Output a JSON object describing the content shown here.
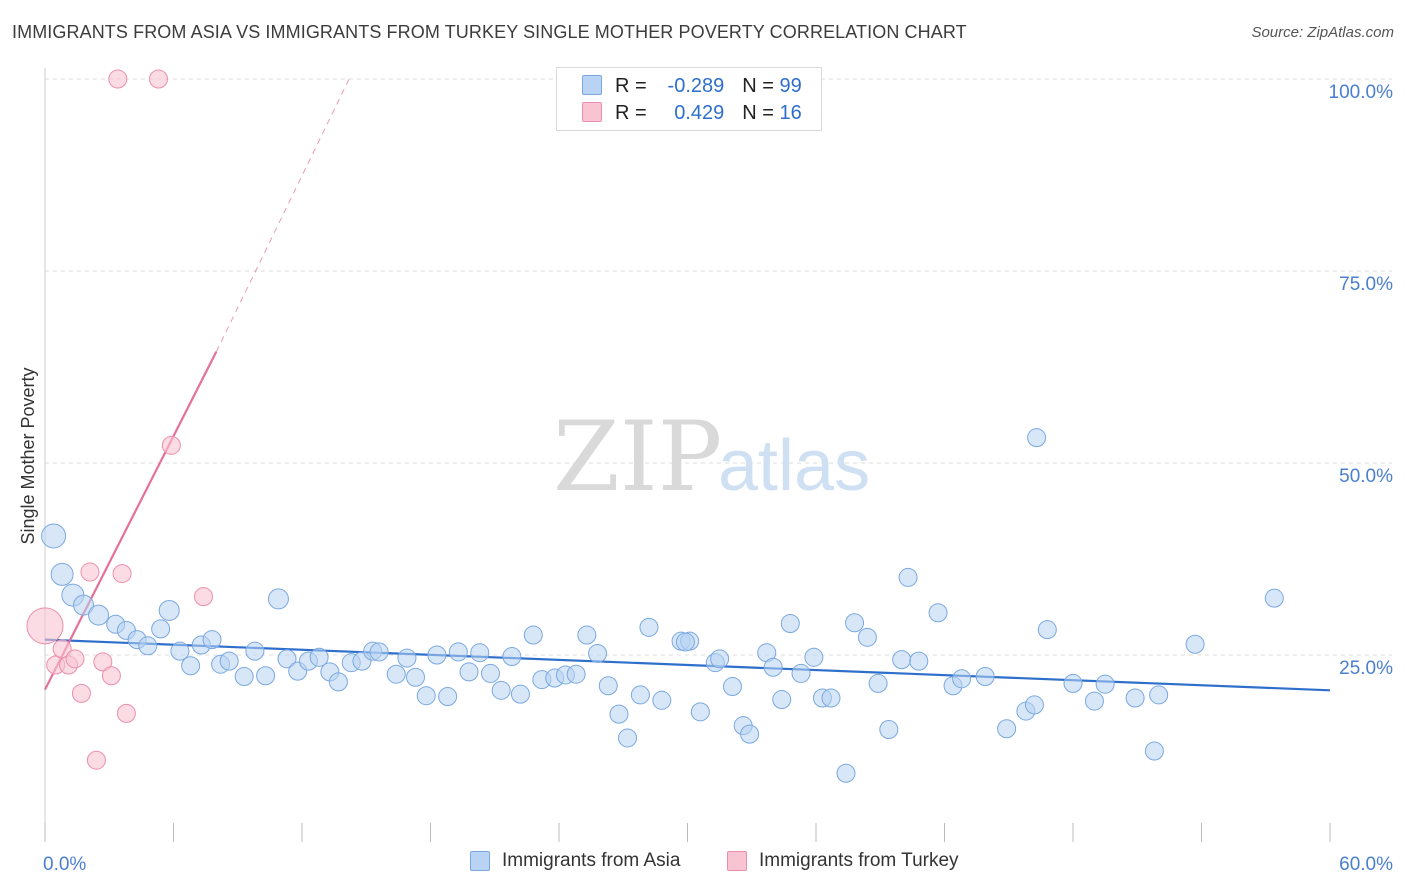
{
  "title": "IMMIGRANTS FROM ASIA VS IMMIGRANTS FROM TURKEY SINGLE MOTHER POVERTY CORRELATION CHART",
  "source": "Source: ZipAtlas.com",
  "watermark": {
    "zip": "ZIP",
    "atlas": "atlas"
  },
  "colors": {
    "asia_fill": "#b8d3f3",
    "asia_stroke": "#7aa8e0",
    "asia_line": "#2e6fcc",
    "turkey_fill": "#f8c3d2",
    "turkey_stroke": "#ec8fac",
    "turkey_line": "#e5709a",
    "tick_text": "#4a7fd0",
    "grid": "#dddddd"
  },
  "stats": [
    {
      "r_label": "R =",
      "r_value": "-0.289",
      "n_label": "N =",
      "n_value": "99"
    },
    {
      "r_label": "R =",
      "r_value": "0.429",
      "n_label": "N =",
      "n_value": "16"
    }
  ],
  "legend": [
    {
      "label": "Immigrants from Asia"
    },
    {
      "label": "Immigrants from Turkey"
    }
  ],
  "chart_data": {
    "type": "scatter",
    "title": "IMMIGRANTS FROM ASIA VS IMMIGRANTS FROM TURKEY SINGLE MOTHER POVERTY CORRELATION CHART",
    "xlabel": "",
    "ylabel": "Single Mother Poverty",
    "xlim": [
      0,
      60
    ],
    "ylim": [
      0,
      105
    ],
    "x_tick_labels": [
      "0.0%",
      "60.0%"
    ],
    "y_ticks": [
      25,
      50,
      75,
      100
    ],
    "y_tick_labels": [
      "25.0%",
      "50.0%",
      "75.0%",
      "100.0%"
    ],
    "grid": "horizontal dashed",
    "series": [
      {
        "name": "Immigrants from Asia",
        "color": "#b8d3f3",
        "trend": {
          "x": [
            0,
            60
          ],
          "y": [
            27.0,
            20.4
          ]
        },
        "points": [
          [
            0.4,
            40.5,
            12
          ],
          [
            0.8,
            35.5,
            11
          ],
          [
            1.3,
            32.8,
            11
          ],
          [
            1.8,
            31.5,
            10
          ],
          [
            2.5,
            30.2,
            10
          ],
          [
            3.3,
            29.0,
            9
          ],
          [
            3.8,
            28.2,
            9
          ],
          [
            4.3,
            27.0,
            9
          ],
          [
            4.8,
            26.2,
            9
          ],
          [
            5.4,
            28.4,
            9
          ],
          [
            5.8,
            30.8,
            10
          ],
          [
            6.3,
            25.5,
            9
          ],
          [
            6.8,
            23.6,
            9
          ],
          [
            7.3,
            26.3,
            9
          ],
          [
            7.8,
            27.0,
            9
          ],
          [
            8.2,
            23.8,
            9
          ],
          [
            8.6,
            24.2,
            9
          ],
          [
            9.3,
            22.2,
            9
          ],
          [
            9.8,
            25.5,
            9
          ],
          [
            10.3,
            22.3,
            9
          ],
          [
            10.9,
            32.3,
            10
          ],
          [
            11.3,
            24.5,
            9
          ],
          [
            11.8,
            22.9,
            9
          ],
          [
            12.3,
            24.2,
            9
          ],
          [
            12.8,
            24.7,
            9
          ],
          [
            13.3,
            22.8,
            9
          ],
          [
            13.7,
            21.5,
            9
          ],
          [
            14.3,
            24.0,
            9
          ],
          [
            14.8,
            24.2,
            9
          ],
          [
            15.3,
            25.5,
            9
          ],
          [
            15.6,
            25.4,
            9
          ],
          [
            16.4,
            22.5,
            9
          ],
          [
            16.9,
            24.6,
            9
          ],
          [
            17.3,
            22.1,
            9
          ],
          [
            17.8,
            19.7,
            9
          ],
          [
            18.3,
            25.0,
            9
          ],
          [
            18.8,
            19.6,
            9
          ],
          [
            19.3,
            25.4,
            9
          ],
          [
            19.8,
            22.8,
            9
          ],
          [
            20.3,
            25.3,
            9
          ],
          [
            20.8,
            22.6,
            9
          ],
          [
            21.3,
            20.4,
            9
          ],
          [
            21.8,
            24.8,
            9
          ],
          [
            22.2,
            19.9,
            9
          ],
          [
            22.8,
            27.6,
            9
          ],
          [
            23.2,
            21.8,
            9
          ],
          [
            23.8,
            22.0,
            9
          ],
          [
            24.3,
            22.4,
            9
          ],
          [
            24.8,
            22.5,
            9
          ],
          [
            25.3,
            27.6,
            9
          ],
          [
            25.8,
            25.2,
            9
          ],
          [
            26.3,
            21.0,
            9
          ],
          [
            26.8,
            17.3,
            9
          ],
          [
            27.2,
            14.2,
            9
          ],
          [
            27.8,
            19.8,
            9
          ],
          [
            28.2,
            28.6,
            9
          ],
          [
            28.8,
            19.1,
            9
          ],
          [
            29.7,
            26.8,
            9
          ],
          [
            30.1,
            26.8,
            9
          ],
          [
            30.6,
            17.6,
            9
          ],
          [
            31.3,
            24.0,
            9
          ],
          [
            31.5,
            24.5,
            9
          ],
          [
            32.1,
            20.9,
            9
          ],
          [
            32.6,
            15.8,
            9
          ],
          [
            32.9,
            14.7,
            9
          ],
          [
            33.7,
            25.3,
            9
          ],
          [
            34.0,
            23.4,
            9
          ],
          [
            34.4,
            19.2,
            9
          ],
          [
            34.8,
            29.1,
            9
          ],
          [
            35.3,
            22.6,
            9
          ],
          [
            35.9,
            24.7,
            9
          ],
          [
            36.3,
            19.4,
            9
          ],
          [
            36.7,
            19.4,
            9
          ],
          [
            37.4,
            9.6,
            9
          ],
          [
            37.8,
            29.2,
            9
          ],
          [
            38.4,
            27.3,
            9
          ],
          [
            38.9,
            21.3,
            9
          ],
          [
            39.4,
            15.3,
            9
          ],
          [
            40.0,
            24.4,
            9
          ],
          [
            40.3,
            35.1,
            9
          ],
          [
            40.8,
            24.2,
            9
          ],
          [
            41.7,
            30.5,
            9
          ],
          [
            42.4,
            21.0,
            9
          ],
          [
            42.8,
            21.9,
            9
          ],
          [
            43.9,
            22.2,
            9
          ],
          [
            44.9,
            15.4,
            9
          ],
          [
            45.8,
            17.7,
            9
          ],
          [
            46.2,
            18.5,
            9
          ],
          [
            46.8,
            28.3,
            9
          ],
          [
            46.3,
            53.3,
            9
          ],
          [
            48.0,
            21.3,
            9
          ],
          [
            49.0,
            19.0,
            9
          ],
          [
            49.5,
            21.2,
            9
          ],
          [
            50.9,
            19.4,
            9
          ],
          [
            51.8,
            12.5,
            9
          ],
          [
            52.0,
            19.8,
            9
          ],
          [
            53.7,
            26.4,
            9
          ],
          [
            57.4,
            32.4,
            9
          ],
          [
            29.9,
            26.7,
            9
          ]
        ]
      },
      {
        "name": "Immigrants from Turkey",
        "color": "#f8c3d2",
        "trend": {
          "x": [
            0,
            8
          ],
          "y": [
            20.5,
            64.5
          ],
          "dashed_to": [
            14.2,
            100
          ]
        },
        "points": [
          [
            0.0,
            28.8,
            18
          ],
          [
            0.5,
            23.7,
            9
          ],
          [
            0.8,
            25.8,
            9
          ],
          [
            1.1,
            23.7,
            9
          ],
          [
            1.4,
            24.5,
            9
          ],
          [
            1.7,
            20.0,
            9
          ],
          [
            2.1,
            35.8,
            9
          ],
          [
            2.4,
            11.3,
            9
          ],
          [
            2.7,
            24.1,
            9
          ],
          [
            3.1,
            22.3,
            9
          ],
          [
            3.6,
            35.6,
            9
          ],
          [
            3.8,
            17.4,
            9
          ],
          [
            3.4,
            100.0,
            9
          ],
          [
            5.3,
            100.0,
            9
          ],
          [
            5.9,
            52.3,
            9
          ],
          [
            7.4,
            32.6,
            9
          ]
        ]
      }
    ]
  }
}
